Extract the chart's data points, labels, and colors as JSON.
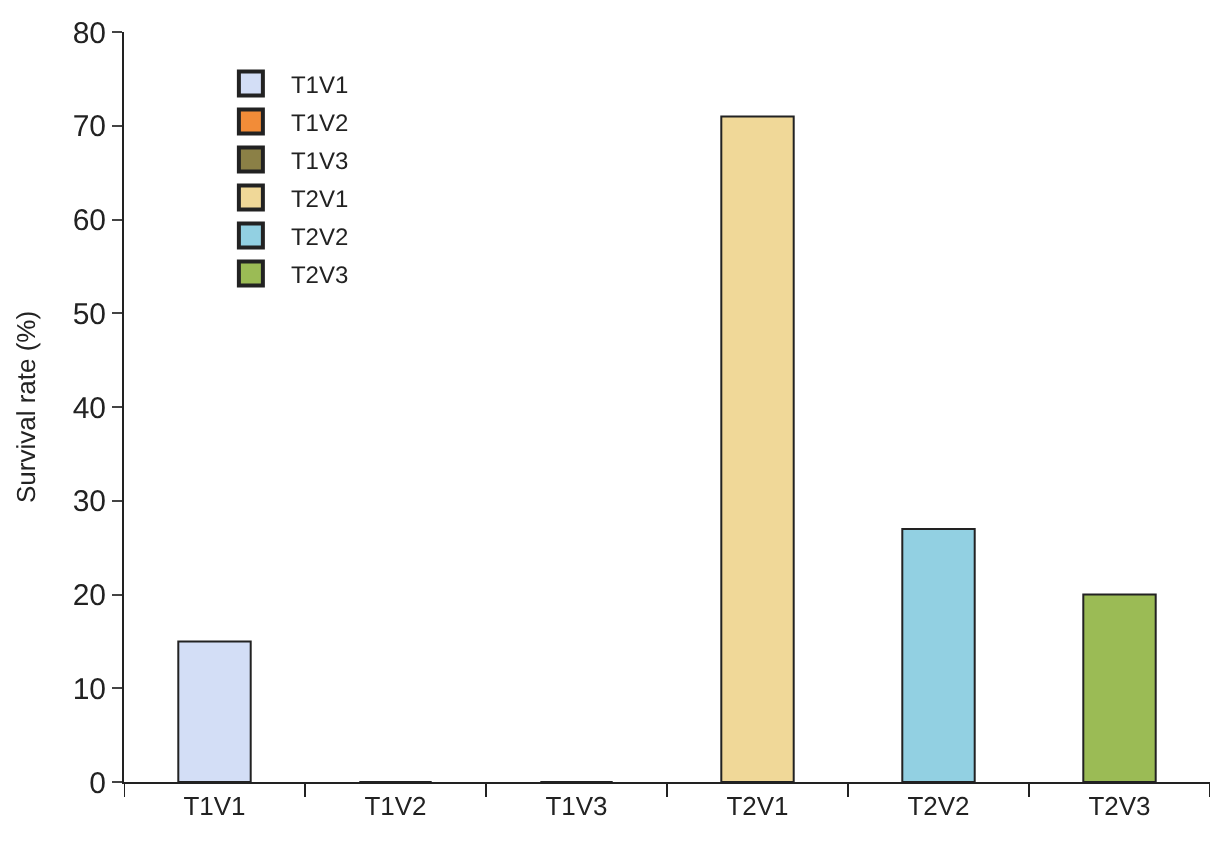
{
  "chart_data": {
    "type": "bar",
    "ylabel": "Survival rate (%)",
    "categories": [
      "T1V1",
      "T1V2",
      "T1V3",
      "T2V1",
      "T2V2",
      "T2V3"
    ],
    "series": [
      {
        "name": "T1V1",
        "color": "#d3def6",
        "values": [
          15,
          null,
          null,
          null,
          null,
          null
        ]
      },
      {
        "name": "T1V2",
        "color": "#f28c38",
        "values": [
          null,
          0,
          null,
          null,
          null,
          null
        ]
      },
      {
        "name": "T1V3",
        "color": "#8b8046",
        "values": [
          null,
          null,
          0,
          null,
          null,
          null
        ]
      },
      {
        "name": "T2V1",
        "color": "#f0d898",
        "values": [
          null,
          null,
          null,
          71,
          null,
          null
        ]
      },
      {
        "name": "T2V2",
        "color": "#92d0e2",
        "values": [
          null,
          null,
          null,
          null,
          27,
          null
        ]
      },
      {
        "name": "T2V3",
        "color": "#9bbb55",
        "values": [
          null,
          null,
          null,
          null,
          null,
          20
        ]
      }
    ],
    "ylim": [
      0,
      80
    ],
    "yticks": [
      0,
      10,
      20,
      30,
      40,
      50,
      60,
      70,
      80
    ],
    "legend": "top left"
  }
}
